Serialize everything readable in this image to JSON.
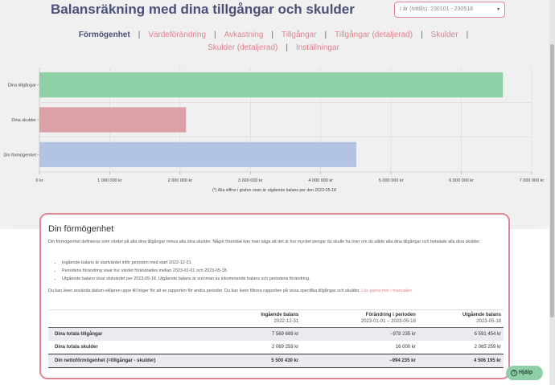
{
  "header": {
    "title": "Balansräkning med dina tillgångar och skulder",
    "date_select_value": "I år (hittills): 230101 - 230518"
  },
  "nav": {
    "tabs": [
      {
        "label": "Förmögenhet",
        "active": true
      },
      {
        "label": "Värdeförändring",
        "active": false
      },
      {
        "label": "Avkastning",
        "active": false
      },
      {
        "label": "Tillgångar",
        "active": false
      },
      {
        "label": "Tillgångar (detaljerad)",
        "active": false
      },
      {
        "label": "Skulder",
        "active": false
      },
      {
        "label": "Skulder (detaljerad)",
        "active": false
      },
      {
        "label": "Inställningar",
        "active": false
      }
    ],
    "separator": "|"
  },
  "chart_data": {
    "type": "bar",
    "orientation": "horizontal",
    "categories": [
      "Dina tillgångar",
      "Dina skulder",
      "Din förmögenhet"
    ],
    "values": [
      6591454,
      2085259,
      4506195
    ],
    "colors": [
      "#8fd1a6",
      "#dba1a6",
      "#b3c4e2"
    ],
    "xlim": [
      0,
      7000000
    ],
    "x_ticks": [
      0,
      1000000,
      2000000,
      3000000,
      4000000,
      5000000,
      6000000,
      7000000
    ],
    "x_tick_labels": [
      "0 kr",
      "1 000 000 kr",
      "2 000 000 kr",
      "3 000 000 kr",
      "4 000 000 kr",
      "5 000 000 kr",
      "6 000 000 kr",
      "7 000 000 kr"
    ],
    "grid": true,
    "footnote": "(*) Alla siffror i grafen ovan är utgående balans per den 2023-05-18"
  },
  "card": {
    "title": "Din förmögenhet",
    "intro": "Din förmögenhet definieras som värdet på alla dina tillgångar minus alla dina skulder. Något förenklat kan man säga att det är hur mycket pengar du skulle ha över om du sålde alla dina tillgångar och betalade alla dina skulder.",
    "bullets": [
      "Ingående balans är startvärdet inför perioden med start 2022-12-31.",
      "Periodens förändring visar hur värdet förändrades mellan 2023-01-01 och 2023-05-18.",
      "Utgående balans visar slutvärdet per 2023-05-18. Utgående balans är summan av inkommande balans och periodens förändring."
    ],
    "outro": "Du kan även använda datum-väljaren uppe till höger för att se rapporten för andra perioder. Du kan även filtrera rapporten på vissa specifika tillgångar och skulder.",
    "outro_link": "Läs gärna mer i manualen."
  },
  "table": {
    "columns": [
      {
        "title": "",
        "sub": ""
      },
      {
        "title": "Ingående balans",
        "sub": "2022-12-31"
      },
      {
        "title": "Förändring i perioden",
        "sub": "2023-01-01 – 2023-05-18"
      },
      {
        "title": "Utgående balans",
        "sub": "2023-05-18"
      }
    ],
    "rows": [
      {
        "label": "Dina totala tillgångar",
        "values": [
          "7 569 689 kr",
          "−978 235 kr",
          "6 591 454 kr"
        ]
      },
      {
        "label": "Dina totala skulder",
        "values": [
          "2 069 259 kr",
          "16 000 kr",
          "2 085 259 kr"
        ]
      },
      {
        "label": "Din nettoförmögenhet (=tillgångar - skulder)",
        "values": [
          "5 500 430 kr",
          "−994 235 kr",
          "4 506 195 kr"
        ]
      }
    ]
  },
  "help": {
    "icon": "?",
    "label": "Hjälp"
  }
}
